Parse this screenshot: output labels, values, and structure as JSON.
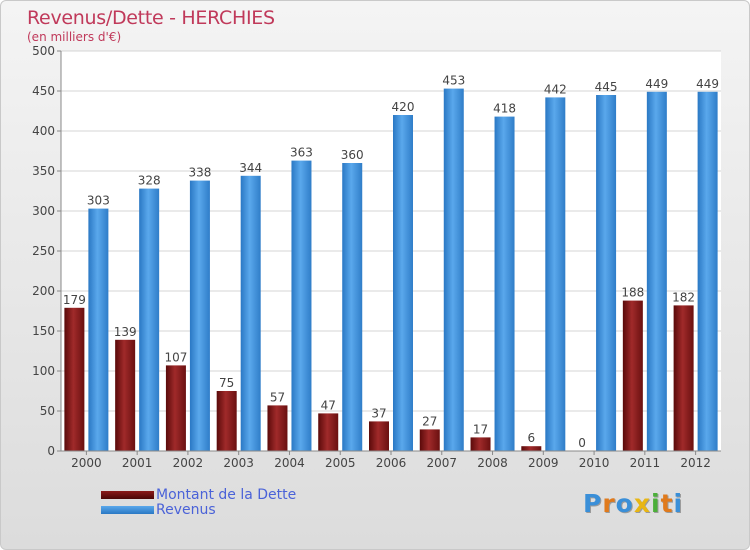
{
  "page": {
    "title": "Revenus/Dette - HERCHIES",
    "subtitle": "(en milliers d'€)",
    "logo_letters": [
      "P",
      "r",
      "o",
      "x",
      "i",
      "t",
      "i"
    ],
    "logo_colors": [
      "#3a8fd8",
      "#e07a1c",
      "#3a8fd8",
      "#e8b614",
      "#4caf3a",
      "#e07a1c",
      "#3a8fd8"
    ]
  },
  "chart_data": {
    "type": "bar",
    "title": "Revenus/Dette - HERCHIES",
    "subtitle": "(en milliers d'€)",
    "categories": [
      "2000",
      "2001",
      "2002",
      "2003",
      "2004",
      "2005",
      "2006",
      "2007",
      "2008",
      "2009",
      "2010",
      "2011",
      "2012"
    ],
    "series": [
      {
        "name": "Montant de la Dette",
        "color": "#8b1a1a",
        "values": [
          179,
          139,
          107,
          75,
          57,
          47,
          37,
          27,
          17,
          6,
          0,
          188,
          182
        ]
      },
      {
        "name": "Revenus",
        "color": "#3d8fd9",
        "values": [
          303,
          328,
          338,
          344,
          363,
          360,
          420,
          453,
          418,
          442,
          445,
          449,
          449
        ]
      }
    ],
    "ylim": [
      0,
      500
    ],
    "yticks": [
      0,
      50,
      100,
      150,
      200,
      250,
      300,
      350,
      400,
      450,
      500
    ],
    "grid": true,
    "legend": "bottom-left"
  }
}
